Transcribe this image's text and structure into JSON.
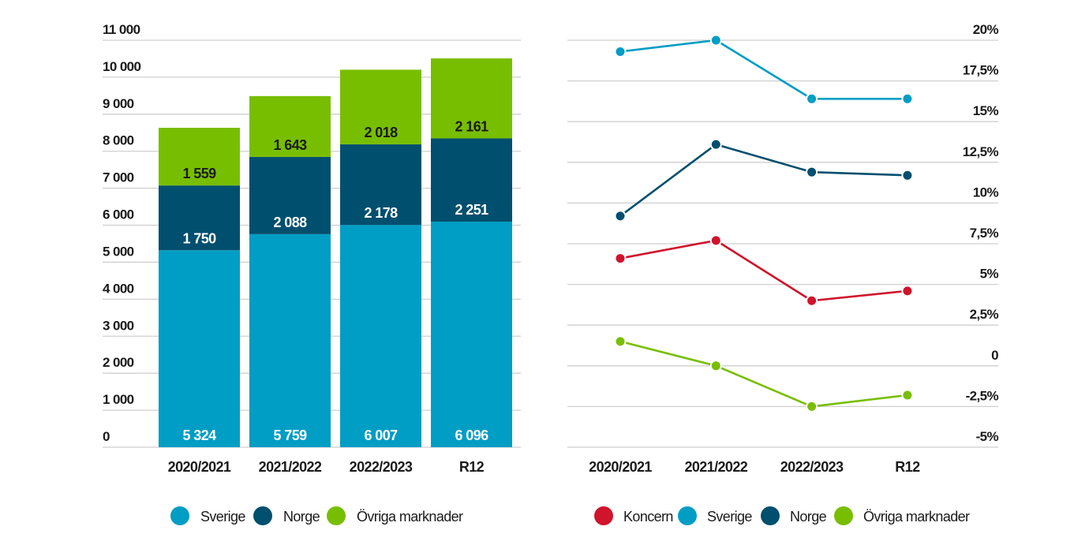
{
  "colors": {
    "sverige": "#009dc4",
    "norge": "#004f6e",
    "ovriga": "#78be00",
    "koncern": "#d0142c",
    "label_dark": "#1a1a1a",
    "label_light": "#ffffff",
    "grid": "#cfcfcf"
  },
  "chart_data": [
    {
      "type": "bar",
      "stacked": true,
      "title": "",
      "xlabel": "",
      "ylabel": "",
      "categories": [
        "2020/2021",
        "2021/2022",
        "2022/2023",
        "R12"
      ],
      "series": [
        {
          "key": "sverige",
          "name": "Sverige",
          "values": [
            5324,
            5759,
            6007,
            6096
          ],
          "labels": [
            "5 324",
            "5 759",
            "6 007",
            "6 096"
          ],
          "label_position": "bottom",
          "label_color": "#ffffff"
        },
        {
          "key": "norge",
          "name": "Norge",
          "values": [
            1750,
            2088,
            2178,
            2251
          ],
          "labels": [
            "1 750",
            "2 088",
            "2 178",
            "2 251"
          ],
          "label_position": "bottom",
          "label_color": "#ffffff"
        },
        {
          "key": "ovriga",
          "name": "Övriga marknader",
          "values": [
            1559,
            1643,
            2018,
            2161
          ],
          "labels": [
            "1 559",
            "1 643",
            "2 018",
            "2 161"
          ],
          "label_position": "bottom",
          "label_color": "#1a1a1a"
        }
      ],
      "ylim": [
        0,
        11000
      ],
      "yticks": [
        0,
        1000,
        2000,
        3000,
        4000,
        5000,
        6000,
        7000,
        8000,
        9000,
        10000,
        11000
      ],
      "ytick_labels": [
        "0",
        "1 000",
        "2 000",
        "3 000",
        "4 000",
        "5 000",
        "6 000",
        "7 000",
        "8 000",
        "9 000",
        "10 000",
        "11 000"
      ],
      "y_axis_side": "left",
      "grid": true,
      "legend": {
        "position": "bottom",
        "items": [
          {
            "key": "sverige",
            "label": "Sverige"
          },
          {
            "key": "norge",
            "label": "Norge"
          },
          {
            "key": "ovriga",
            "label": "Övriga marknader"
          }
        ]
      }
    },
    {
      "type": "line",
      "title": "",
      "xlabel": "",
      "ylabel": "",
      "categories": [
        "2020/2021",
        "2021/2022",
        "2022/2023",
        "R12"
      ],
      "series": [
        {
          "key": "sverige",
          "name": "Sverige",
          "values": [
            19.3,
            20.0,
            16.4,
            16.4
          ]
        },
        {
          "key": "norge",
          "name": "Norge",
          "values": [
            9.2,
            13.6,
            11.9,
            11.7
          ]
        },
        {
          "key": "koncern",
          "name": "Koncern",
          "values": [
            6.6,
            7.7,
            4.0,
            4.6
          ]
        },
        {
          "key": "ovriga",
          "name": "Övriga marknader",
          "values": [
            1.5,
            0.0,
            -2.5,
            -1.8
          ]
        }
      ],
      "ylim": [
        -5,
        20
      ],
      "yticks": [
        -5,
        -2.5,
        0,
        2.5,
        5,
        7.5,
        10,
        12.5,
        15,
        17.5,
        20
      ],
      "ytick_labels": [
        "-5%",
        "-2,5%",
        "0",
        "2,5%",
        "5%",
        "7,5%",
        "10%",
        "12,5%",
        "15%",
        "17,5%",
        "20%"
      ],
      "y_axis_side": "right",
      "grid": true,
      "markers": true,
      "legend": {
        "position": "bottom",
        "items": [
          {
            "key": "koncern",
            "label": "Koncern"
          },
          {
            "key": "sverige",
            "label": "Sverige"
          },
          {
            "key": "norge",
            "label": "Norge"
          },
          {
            "key": "ovriga",
            "label": "Övriga marknader"
          }
        ]
      }
    }
  ]
}
